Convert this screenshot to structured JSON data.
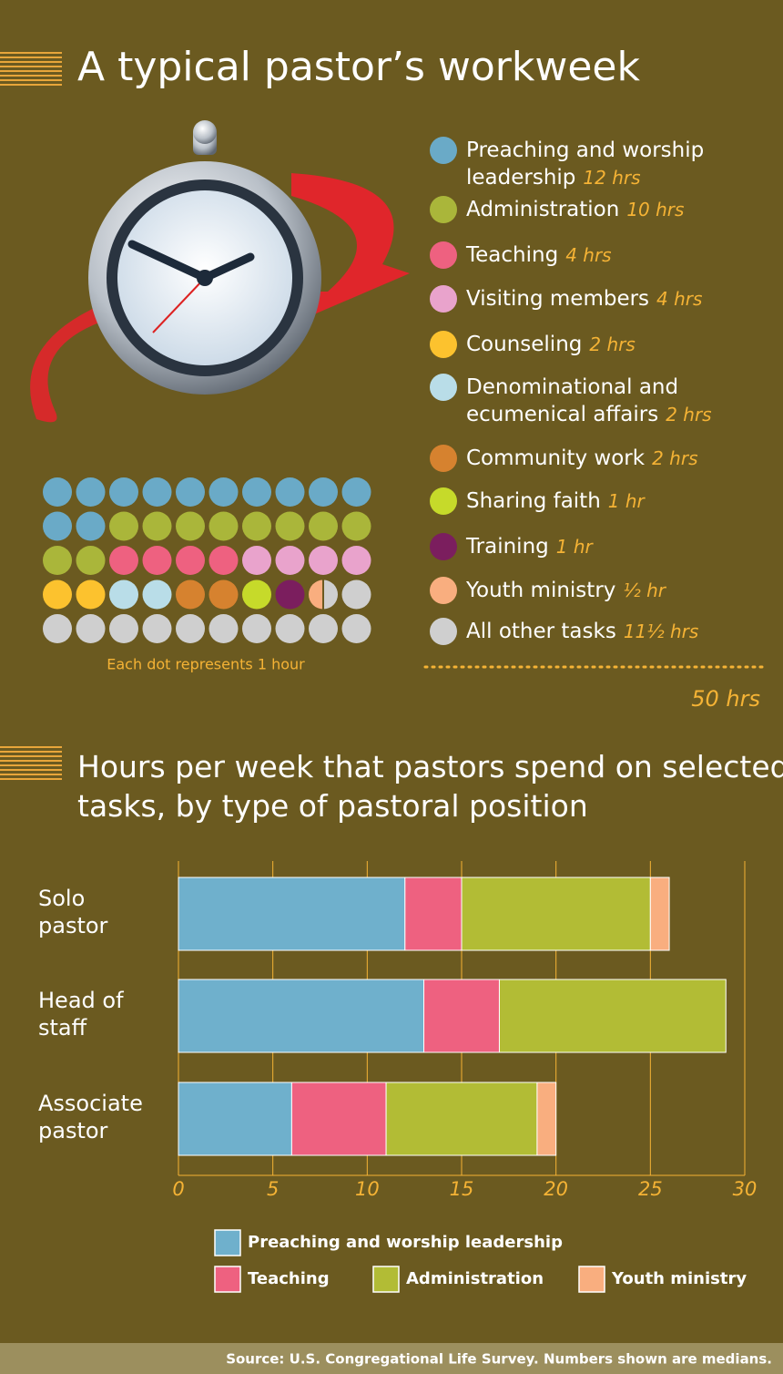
{
  "chart_data": [
    {
      "type": "waffle",
      "title": "A typical pastor’s workweek",
      "categories": [
        "Preaching and worship leadership",
        "Administration",
        "Teaching",
        "Visiting members",
        "Counseling",
        "Denominational and ecumenical affairs",
        "Community work",
        "Sharing faith",
        "Training",
        "Youth ministry",
        "All other tasks"
      ],
      "values": [
        12,
        10,
        4,
        4,
        2,
        2,
        2,
        1,
        1,
        0.5,
        11.5
      ],
      "value_labels": [
        "12 hrs",
        "10 hrs",
        "4 hrs",
        "4 hrs",
        "2 hrs",
        "2 hrs",
        "2 hrs",
        "1 hr",
        "1 hr",
        "½ hr",
        "11½ hrs"
      ],
      "colors": [
        "#6aaac7",
        "#aab63a",
        "#ee6180",
        "#e9a3cc",
        "#fcc22e",
        "#b9dde8",
        "#d6822f",
        "#c6da2a",
        "#7b1e5e",
        "#f9ae7f",
        "#cfcfcf"
      ],
      "note": "Each dot represents 1 hour",
      "total": 50,
      "total_label": "50 hrs"
    },
    {
      "type": "stacked-bar-horizontal",
      "title": "Hours per week that pastors spend on selected tasks, by type of pastoral position",
      "categories": [
        "Solo pastor",
        "Head of staff",
        "Associate pastor"
      ],
      "series": [
        {
          "name": "Preaching and worship leadership",
          "color": "#6fb0cc",
          "values": [
            12,
            13,
            6
          ]
        },
        {
          "name": "Teaching",
          "color": "#ee6180",
          "values": [
            3,
            4,
            5
          ]
        },
        {
          "name": "Administration",
          "color": "#b2bc35",
          "values": [
            10,
            12,
            8
          ]
        },
        {
          "name": "Youth ministry",
          "color": "#f9ae7f",
          "values": [
            1,
            null,
            1
          ]
        }
      ],
      "xlim": [
        0,
        30
      ],
      "xticks": [
        0,
        5,
        10,
        15,
        20,
        25,
        30
      ],
      "grid": true
    }
  ],
  "source": "Source: U.S. Congregational Life Survey. Numbers shown are medians."
}
